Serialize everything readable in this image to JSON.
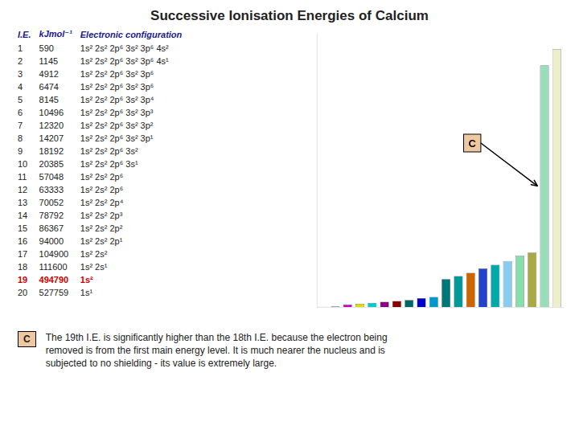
{
  "chart_data": {
    "type": "bar",
    "title": "Successive Ionisation Energies of Calcium",
    "xlabel": "I.E.",
    "ylabel": "kJmol⁻¹",
    "categories": [
      "1",
      "2",
      "3",
      "4",
      "5",
      "6",
      "7",
      "8",
      "9",
      "10",
      "11",
      "12",
      "13",
      "14",
      "15",
      "16",
      "17",
      "18",
      "19",
      "20"
    ],
    "values": [
      590,
      1145,
      4912,
      6474,
      8145,
      10496,
      12320,
      14207,
      18192,
      20385,
      57048,
      63333,
      70052,
      78792,
      86367,
      94000,
      104900,
      111600,
      494790,
      527759
    ],
    "colors": [
      "#888888",
      "#3333aa",
      "#cc00cc",
      "#dddd00",
      "#00cccc",
      "#880088",
      "#880000",
      "#006666",
      "#0000cc",
      "#0099cc",
      "#007777",
      "#009999",
      "#cc6600",
      "#2244cc",
      "#00aaaa",
      "#88ccee",
      "#88ddaa",
      "#aaaa44",
      "#99ddbb",
      "#eeeecc"
    ],
    "configs_label": "Electronic configuration",
    "configs": [
      "1s² 2s² 2p⁶ 3s² 3p⁶ 4s²",
      "1s² 2s² 2p⁶ 3s² 3p⁶ 4s¹",
      "1s² 2s² 2p⁶ 3s² 3p⁶",
      "1s² 2s² 2p⁶ 3s² 3p⁶",
      "1s² 2s² 2p⁶ 3s² 3p⁴",
      "1s² 2s² 2p⁶ 3s² 3p³",
      "1s² 2s² 2p⁶ 3s² 3p²",
      "1s² 2s² 2p⁶ 3s² 3p¹",
      "1s² 2s² 2p⁶ 3s²",
      "1s² 2s² 2p⁶ 3s¹",
      "1s² 2s² 2p⁶",
      "1s² 2s² 2p⁶",
      "1s² 2s² 2p⁴",
      "1s² 2s² 2p³",
      "1s² 2s² 2p²",
      "1s² 2s² 2p¹",
      "1s² 2s²",
      "1s² 2s¹",
      "1s²",
      "1s¹"
    ],
    "highlight_color": "#cc0000",
    "annotations": [
      {
        "text": "C",
        "x": "19",
        "color": "#f0c8a0"
      }
    ],
    "note": "The 19th I.E. is significantly higher than the 18th I.E. because the electron being\nremoved is from the first main energy level.  It is much nearer the nucleus and is\nsubjected to no shielding - its value is extremely large.",
    "ylim": [
      0,
      559424.54
    ],
    "grid": false,
    "tick_labels": false
  }
}
